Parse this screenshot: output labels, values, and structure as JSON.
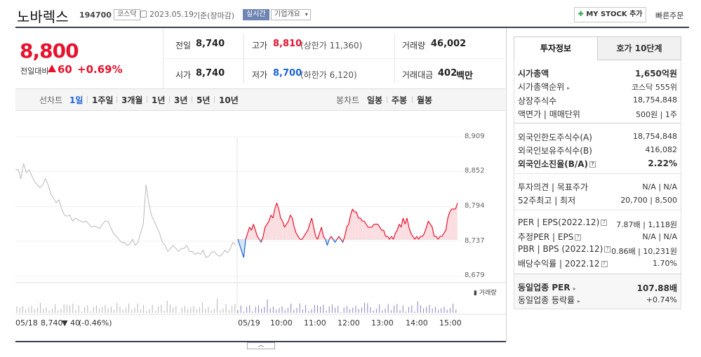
{
  "header": {
    "name": "노바렉스",
    "code": "194700",
    "market": "코스닥",
    "date": "2023.05.19",
    "basis": "기준(장마감)",
    "realtime": "실시간",
    "company_overview": "기업개요",
    "mystock": "MY STOCK 추가",
    "quick_order": "빠른주문"
  },
  "price": {
    "current": "8,800",
    "diff_label": "전일대비",
    "diff_value": "60",
    "diff_pct": "+0.69%",
    "prev_label": "전일",
    "prev": "8,740",
    "high_label": "고가",
    "high": "8,810",
    "upper_limit": "(상한가 11,360)",
    "volume_label": "거래량",
    "volume": "46,002",
    "open_label": "시가",
    "open": "8,740",
    "low_label": "저가",
    "low": "8,700",
    "lower_limit": "(하한가 6,120)",
    "amount_label": "거래대금",
    "amount": "402",
    "amount_unit": "백만"
  },
  "periods": {
    "line_chart": "선차트",
    "items": [
      "1일",
      "1주일",
      "3개월",
      "1년",
      "3년",
      "5년",
      "10년"
    ],
    "candle_chart": "봉차트",
    "candles": [
      "일봉",
      "주봉",
      "월봉"
    ]
  },
  "tabs": {
    "invest_info": "투자정보",
    "hoga": "호가 10단계"
  },
  "invest": {
    "market_cap_label": "시가총액",
    "market_cap": "1,650억원",
    "market_cap_rank_label": "시가총액순위",
    "market_cap_rank": "코스닥 555위",
    "shares_label": "상장주식수",
    "shares": "18,754,848",
    "par_label": "액면가 | 매매단위",
    "par": "500원 | 1주",
    "foreign_limit_label": "외국인한도주식수(A)",
    "foreign_limit": "18,754,848",
    "foreign_hold_label": "외국인보유주식수(B)",
    "foreign_hold": "416,082",
    "foreign_ratio_label": "외국인소진율(B/A)",
    "foreign_ratio": "2.22%",
    "opinion_label": "투자의견 | 목표주가",
    "opinion": "N/A | N/A",
    "week52_label": "52주최고 | 최저",
    "week52": "20,700 | 8,500",
    "per_label": "PER | EPS(2022.12)",
    "per": "7.87배 | 1,118원",
    "est_per_label": "추정PER | EPS",
    "est_per": "N/A | N/A",
    "pbr_label": "PBR | BPS (2022.12)",
    "pbr": "0.86배 | 10,231원",
    "dividend_label": "배당수익률 | 2022.12",
    "dividend": "1.70%",
    "sector_per_label": "동일업종 PER",
    "sector_per": "107.88배",
    "sector_rate_label": "동일업종 등락률",
    "sector_rate": "+0.74%"
  },
  "chart_footer": {
    "prev_day": "05/18",
    "prev_close": "8,740",
    "prev_change": "40",
    "prev_pct": "(-0.46%)",
    "volume_label": "거래량"
  },
  "chart_data": {
    "type": "line",
    "yticks": [
      "8,909",
      "8,852",
      "8,794",
      "8,737",
      "8,679"
    ],
    "ylim": [
      8679,
      8909
    ],
    "baseline": 8740,
    "xticks": [
      "05/19",
      "10:00",
      "11:00",
      "12:00",
      "13:00",
      "14:00",
      "15:00"
    ],
    "series": [
      {
        "name": "05/18",
        "values": [
          8855,
          8855,
          8840,
          8865,
          8850,
          8855,
          8845,
          8835,
          8830,
          8825,
          8830,
          8840,
          8830,
          8815,
          8808,
          8800,
          8805,
          8790,
          8780,
          8778,
          8780,
          8770,
          8775,
          8772,
          8770,
          8768,
          8770,
          8765,
          8760,
          8762,
          8760,
          8758,
          8765,
          8770,
          8770,
          8760,
          8750,
          8745,
          8740,
          8735,
          8735,
          8730,
          8732,
          8740,
          8730,
          8735,
          8750,
          8765,
          8830,
          8800,
          8780,
          8770,
          8760,
          8750,
          8735,
          8730,
          8720,
          8725,
          8730,
          8725,
          8720,
          8725,
          8725,
          8730,
          8720,
          8720,
          8715,
          8718,
          8715,
          8722,
          8710,
          8712,
          8718,
          8720,
          8715,
          8712,
          8715,
          8722,
          8718,
          8725,
          8735,
          8730
        ]
      },
      {
        "name": "05/19",
        "values": [
          8740,
          8730,
          8720,
          8710,
          8740,
          8750,
          8760,
          8755,
          8765,
          8755,
          8745,
          8740,
          8735,
          8745,
          8760,
          8765,
          8770,
          8780,
          8775,
          8790,
          8800,
          8790,
          8775,
          8770,
          8760,
          8765,
          8770,
          8780,
          8775,
          8760,
          8750,
          8745,
          8740,
          8740,
          8745,
          8750,
          8755,
          8765,
          8775,
          8760,
          8745,
          8740,
          8750,
          8760,
          8745,
          8740,
          8730,
          8740,
          8745,
          8740,
          8735,
          8740,
          8745,
          8740,
          8735,
          8745,
          8760,
          8765,
          8780,
          8790,
          8785,
          8785,
          8775,
          8775,
          8770,
          8770,
          8765,
          8760,
          8760,
          8760,
          8765,
          8765,
          8765,
          8760,
          8755,
          8755,
          8745,
          8745,
          8740,
          8745,
          8740,
          8750,
          8755,
          8765,
          8760,
          8775,
          8765,
          8775,
          8760,
          8750,
          8745,
          8740,
          8745,
          8740,
          8745,
          8745,
          8750,
          8760,
          8770,
          8765,
          8760,
          8745,
          8745,
          8740,
          8745,
          8745,
          8750,
          8755,
          8775,
          8785,
          8790,
          8790,
          8790,
          8800
        ]
      }
    ],
    "colors": {
      "prev": "#b9b9b9",
      "up": "#e8112d",
      "down": "#1a63d7",
      "up_fill": "#fbdde0",
      "down_fill": "#d6e3f7"
    }
  }
}
